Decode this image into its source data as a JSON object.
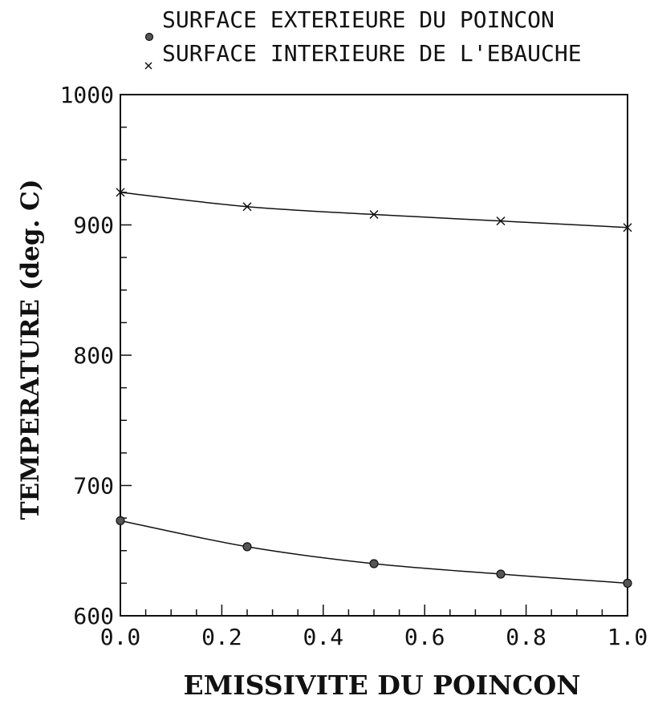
{
  "chart_data": {
    "type": "line",
    "title": "",
    "xlabel": "EMISSIVITE DU POINCON",
    "ylabel": "TEMPERATURE (deg. C)",
    "xlim": [
      0.0,
      1.0
    ],
    "ylim": [
      600,
      1000
    ],
    "xticks": [
      "0.0",
      "0.2",
      "0.4",
      "0.6",
      "0.8",
      "1.0"
    ],
    "yticks": [
      "600",
      "700",
      "800",
      "900",
      "1000"
    ],
    "x_minor_step": 0.05,
    "y_minor_step": 25,
    "legend_position": "top",
    "series": [
      {
        "name": "SURFACE EXTERIEURE DU POINCON",
        "marker": "circle",
        "x": [
          0.0,
          0.25,
          0.5,
          0.75,
          1.0
        ],
        "y": [
          673,
          653,
          640,
          632,
          625
        ]
      },
      {
        "name": "SURFACE INTERIEURE DE L'EBAUCHE",
        "marker": "x",
        "x": [
          0.0,
          0.25,
          0.5,
          0.75,
          1.0
        ],
        "y": [
          925,
          914,
          908,
          903,
          898
        ]
      }
    ],
    "colors": {
      "line": "#111111",
      "marker_fill": "#555555"
    }
  }
}
